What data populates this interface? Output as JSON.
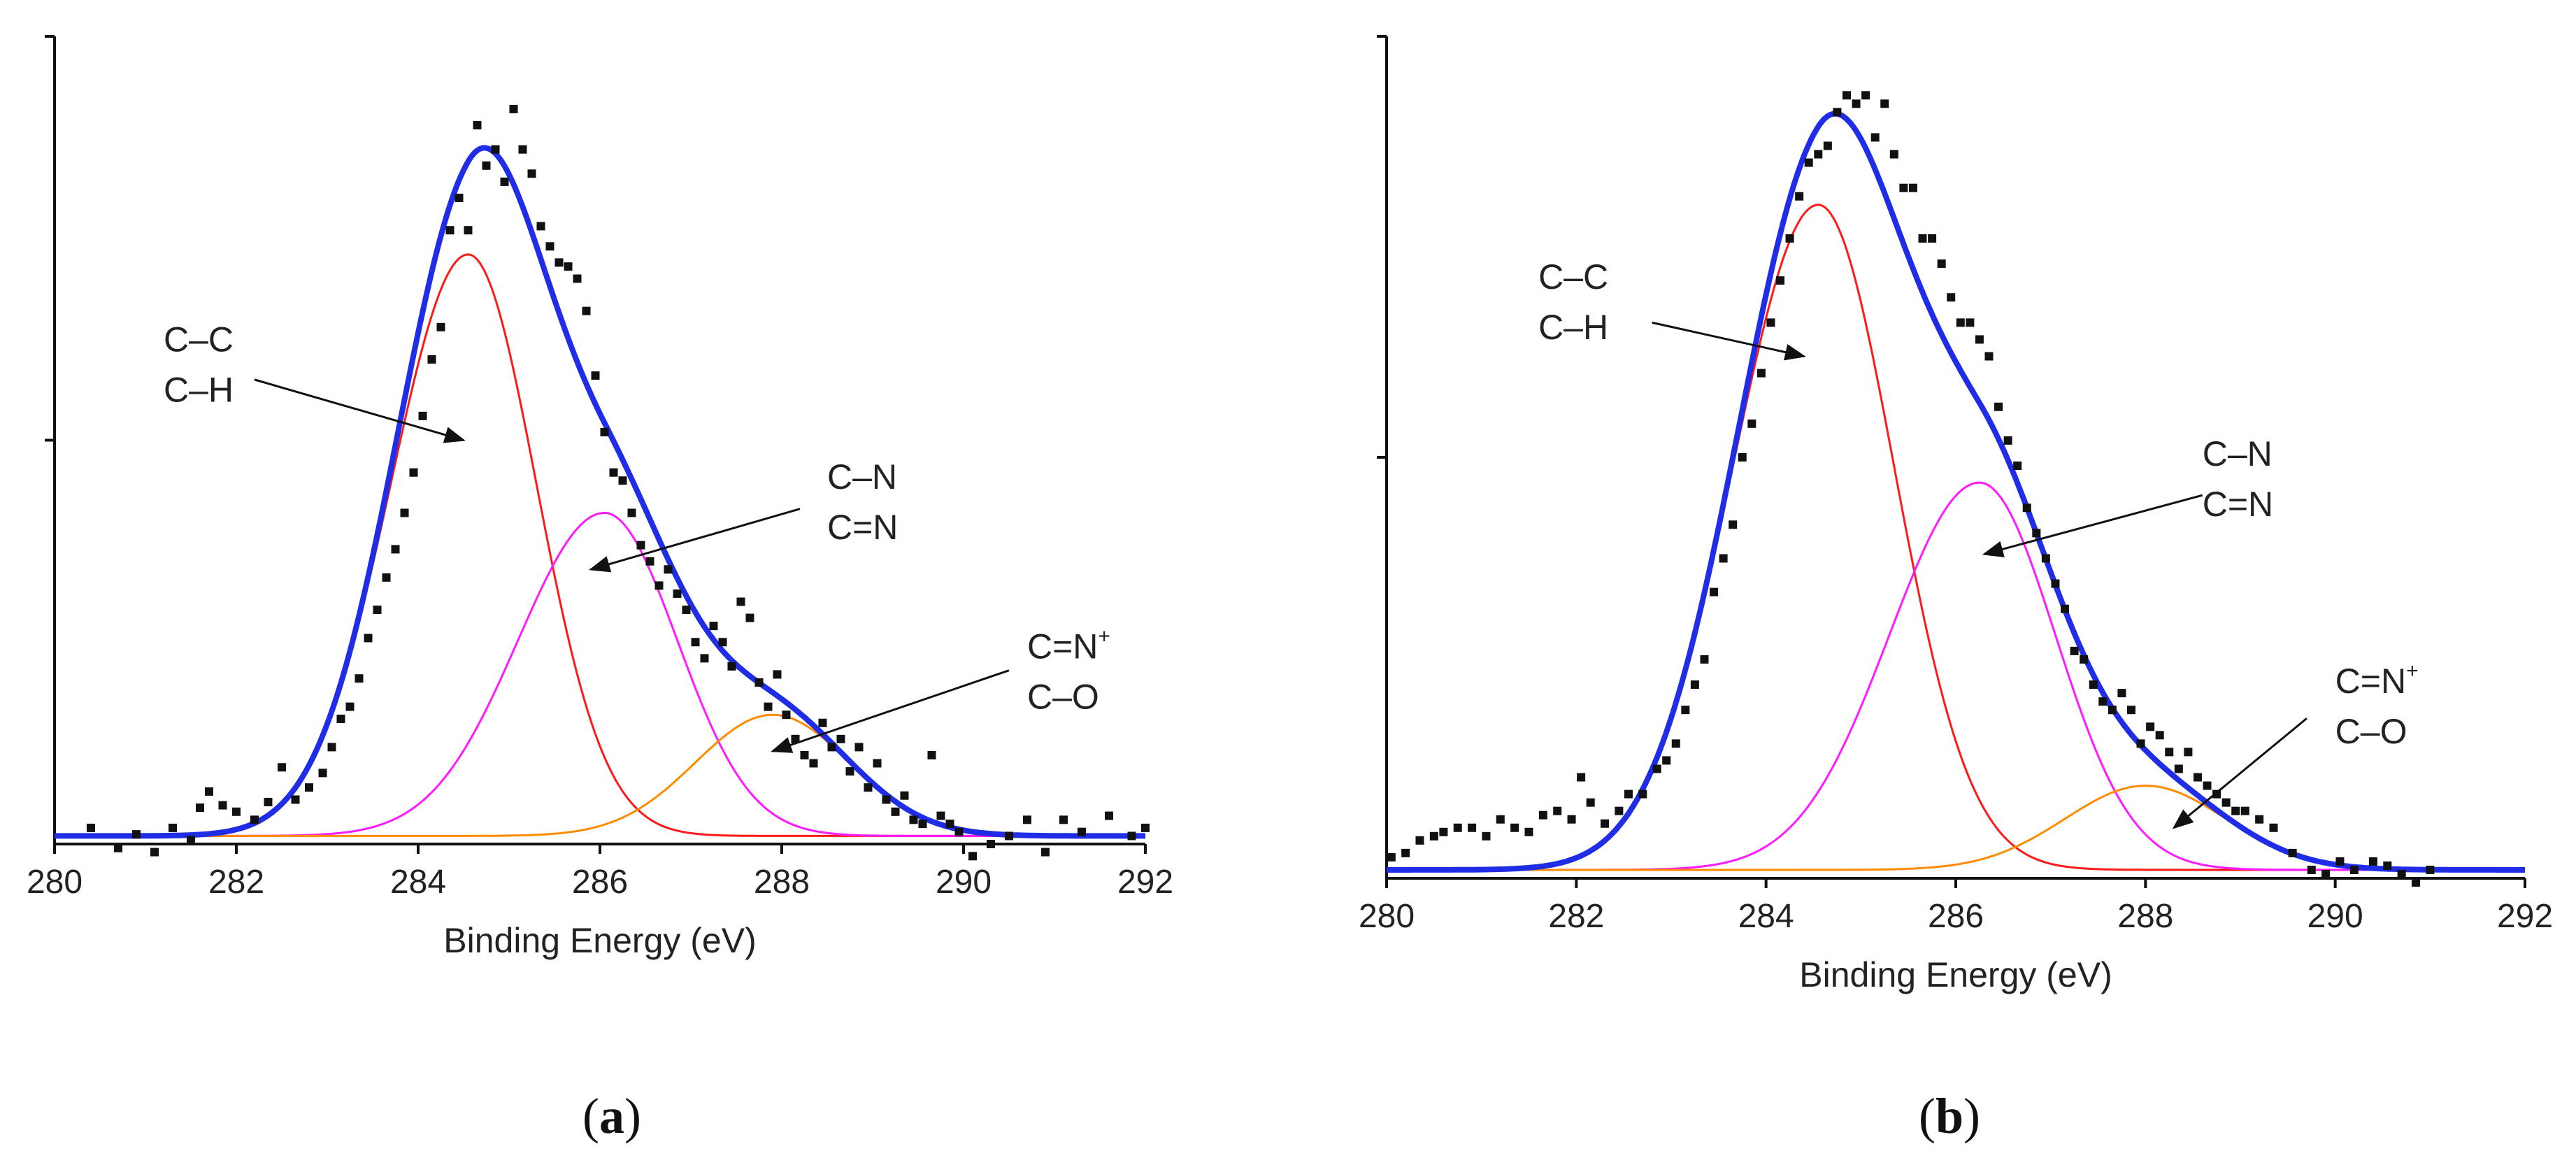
{
  "figure": {
    "panel_labels": [
      {
        "open": "(",
        "letter": "a",
        "close": ")"
      },
      {
        "open": "(",
        "letter": "b",
        "close": ")"
      }
    ]
  },
  "colors": {
    "envelope": "#1f2ee6",
    "cc_component": "#ff1a1a",
    "cn_component": "#ff1aff",
    "cno_component": "#ff8c00",
    "data_points": "#111111",
    "axis": "#111111"
  },
  "chart_data": [
    {
      "type": "scatter",
      "title": "",
      "xlabel": "Binding Energy (eV)",
      "ylabel": "",
      "xlim": [
        280,
        292
      ],
      "ylim": [
        0,
        1.0
      ],
      "x_ticks": [
        "280",
        "282",
        "284",
        "286",
        "288",
        "290",
        "292"
      ],
      "y_ticks": [
        0.5,
        1.0
      ],
      "baseline": 0.01,
      "components": [
        {
          "name": "C–C / C–H",
          "color_key": "cc_component",
          "center": 284.55,
          "amplitude": 0.72,
          "width_left": 0.85,
          "width_right": 0.75
        },
        {
          "name": "C–N / C=N",
          "color_key": "cn_component",
          "center": 286.05,
          "amplitude": 0.4,
          "width_left": 0.95,
          "width_right": 0.8
        },
        {
          "name": "C=N+ / C–O",
          "color_key": "cno_component",
          "center": 287.9,
          "amplitude": 0.15,
          "width_left": 0.85,
          "width_right": 0.85
        }
      ],
      "annotations": [
        {
          "lines": [
            "C–C",
            "C–H"
          ],
          "superscript": "",
          "text_x": 281.2,
          "text_y": 0.61,
          "arrow_from": [
            282.2,
            0.575
          ],
          "arrow_to": [
            284.5,
            0.5
          ]
        },
        {
          "lines": [
            "C–N",
            "C=N"
          ],
          "superscript": "",
          "text_x": 288.5,
          "text_y": 0.44,
          "arrow_from": [
            288.2,
            0.415
          ],
          "arrow_to": [
            285.9,
            0.34
          ]
        },
        {
          "lines": [
            "C=N",
            "C–O"
          ],
          "superscript": "+",
          "text_x": 290.7,
          "text_y": 0.23,
          "arrow_from": [
            290.5,
            0.215
          ],
          "arrow_to": [
            287.9,
            0.115
          ]
        }
      ],
      "points": [
        [
          280.4,
          0.02
        ],
        [
          280.7,
          -0.005
        ],
        [
          280.9,
          0.012
        ],
        [
          281.1,
          -0.01
        ],
        [
          281.3,
          0.02
        ],
        [
          281.5,
          0.005
        ],
        [
          281.6,
          0.045
        ],
        [
          281.7,
          0.065
        ],
        [
          281.85,
          0.048
        ],
        [
          282.0,
          0.04
        ],
        [
          282.2,
          0.03
        ],
        [
          282.35,
          0.052
        ],
        [
          282.5,
          0.095
        ],
        [
          282.65,
          0.055
        ],
        [
          282.8,
          0.07
        ],
        [
          282.95,
          0.088
        ],
        [
          283.05,
          0.12
        ],
        [
          283.15,
          0.155
        ],
        [
          283.25,
          0.17
        ],
        [
          283.35,
          0.205
        ],
        [
          283.45,
          0.255
        ],
        [
          283.55,
          0.29
        ],
        [
          283.65,
          0.33
        ],
        [
          283.75,
          0.365
        ],
        [
          283.85,
          0.41
        ],
        [
          283.95,
          0.46
        ],
        [
          284.05,
          0.53
        ],
        [
          284.15,
          0.6
        ],
        [
          284.25,
          0.64
        ],
        [
          284.35,
          0.76
        ],
        [
          284.45,
          0.8
        ],
        [
          284.55,
          0.76
        ],
        [
          284.65,
          0.89
        ],
        [
          284.75,
          0.84
        ],
        [
          284.85,
          0.86
        ],
        [
          284.95,
          0.82
        ],
        [
          285.05,
          0.91
        ],
        [
          285.15,
          0.86
        ],
        [
          285.25,
          0.83
        ],
        [
          285.35,
          0.765
        ],
        [
          285.45,
          0.74
        ],
        [
          285.55,
          0.72
        ],
        [
          285.65,
          0.715
        ],
        [
          285.75,
          0.7
        ],
        [
          285.85,
          0.66
        ],
        [
          285.95,
          0.58
        ],
        [
          286.05,
          0.51
        ],
        [
          286.15,
          0.46
        ],
        [
          286.25,
          0.45
        ],
        [
          286.35,
          0.41
        ],
        [
          286.45,
          0.37
        ],
        [
          286.55,
          0.35
        ],
        [
          286.65,
          0.32
        ],
        [
          286.75,
          0.34
        ],
        [
          286.85,
          0.31
        ],
        [
          286.95,
          0.29
        ],
        [
          287.05,
          0.25
        ],
        [
          287.15,
          0.23
        ],
        [
          287.25,
          0.27
        ],
        [
          287.35,
          0.25
        ],
        [
          287.45,
          0.22
        ],
        [
          287.55,
          0.3
        ],
        [
          287.65,
          0.28
        ],
        [
          287.75,
          0.2
        ],
        [
          287.85,
          0.17
        ],
        [
          287.95,
          0.21
        ],
        [
          288.05,
          0.16
        ],
        [
          288.15,
          0.13
        ],
        [
          288.25,
          0.11
        ],
        [
          288.35,
          0.1
        ],
        [
          288.45,
          0.15
        ],
        [
          288.55,
          0.12
        ],
        [
          288.65,
          0.13
        ],
        [
          288.75,
          0.09
        ],
        [
          288.85,
          0.12
        ],
        [
          288.95,
          0.07
        ],
        [
          289.05,
          0.1
        ],
        [
          289.15,
          0.055
        ],
        [
          289.25,
          0.04
        ],
        [
          289.35,
          0.06
        ],
        [
          289.45,
          0.03
        ],
        [
          289.55,
          0.025
        ],
        [
          289.65,
          0.11
        ],
        [
          289.75,
          0.035
        ],
        [
          289.85,
          0.025
        ],
        [
          289.95,
          0.015
        ],
        [
          290.1,
          -0.015
        ],
        [
          290.3,
          0.0
        ],
        [
          290.5,
          0.01
        ],
        [
          290.7,
          0.03
        ],
        [
          290.9,
          -0.01
        ],
        [
          291.1,
          0.03
        ],
        [
          291.3,
          0.015
        ],
        [
          291.6,
          0.035
        ],
        [
          291.85,
          0.01
        ],
        [
          292.0,
          0.02
        ]
      ]
    },
    {
      "type": "scatter",
      "title": "",
      "xlabel": "Binding Energy (eV)",
      "ylabel": "",
      "xlim": [
        280,
        292
      ],
      "ylim": [
        0,
        1.0
      ],
      "x_ticks": [
        "280",
        "282",
        "284",
        "286",
        "288",
        "290",
        "292"
      ],
      "y_ticks": [
        0.5,
        1.0
      ],
      "baseline": 0.01,
      "components": [
        {
          "name": "C–C / C–H",
          "color_key": "cc_component",
          "center": 284.55,
          "amplitude": 0.79,
          "width_left": 0.9,
          "width_right": 0.8
        },
        {
          "name": "C–N / C=N",
          "color_key": "cn_component",
          "center": 286.25,
          "amplitude": 0.46,
          "width_left": 0.95,
          "width_right": 0.8
        },
        {
          "name": "C=N+ / C–O",
          "color_key": "cno_component",
          "center": 288.0,
          "amplitude": 0.1,
          "width_left": 0.85,
          "width_right": 0.85
        }
      ],
      "annotations": [
        {
          "lines": [
            "C–C",
            "C–H"
          ],
          "superscript": "",
          "text_x": 281.6,
          "text_y": 0.7,
          "arrow_from": [
            282.8,
            0.66
          ],
          "arrow_to": [
            284.4,
            0.62
          ]
        },
        {
          "lines": [
            "C–N",
            "C=N"
          ],
          "superscript": "",
          "text_x": 288.6,
          "text_y": 0.49,
          "arrow_from": [
            288.6,
            0.455
          ],
          "arrow_to": [
            286.3,
            0.385
          ]
        },
        {
          "lines": [
            "C=N",
            "C–O"
          ],
          "superscript": "+",
          "text_x": 290.0,
          "text_y": 0.22,
          "arrow_from": [
            289.7,
            0.19
          ],
          "arrow_to": [
            288.3,
            0.06
          ]
        }
      ],
      "points": [
        [
          280.05,
          0.025
        ],
        [
          280.2,
          0.03
        ],
        [
          280.35,
          0.045
        ],
        [
          280.5,
          0.05
        ],
        [
          280.6,
          0.055
        ],
        [
          280.75,
          0.06
        ],
        [
          280.9,
          0.06
        ],
        [
          281.05,
          0.05
        ],
        [
          281.2,
          0.07
        ],
        [
          281.35,
          0.06
        ],
        [
          281.5,
          0.055
        ],
        [
          281.65,
          0.075
        ],
        [
          281.8,
          0.08
        ],
        [
          281.95,
          0.07
        ],
        [
          282.05,
          0.12
        ],
        [
          282.15,
          0.09
        ],
        [
          282.3,
          0.065
        ],
        [
          282.45,
          0.08
        ],
        [
          282.55,
          0.1
        ],
        [
          282.7,
          0.1
        ],
        [
          282.85,
          0.13
        ],
        [
          282.95,
          0.14
        ],
        [
          283.05,
          0.16
        ],
        [
          283.15,
          0.2
        ],
        [
          283.25,
          0.23
        ],
        [
          283.35,
          0.26
        ],
        [
          283.45,
          0.34
        ],
        [
          283.55,
          0.38
        ],
        [
          283.65,
          0.42
        ],
        [
          283.75,
          0.5
        ],
        [
          283.85,
          0.54
        ],
        [
          283.95,
          0.6
        ],
        [
          284.05,
          0.66
        ],
        [
          284.15,
          0.71
        ],
        [
          284.25,
          0.76
        ],
        [
          284.35,
          0.81
        ],
        [
          284.45,
          0.85
        ],
        [
          284.55,
          0.86
        ],
        [
          284.65,
          0.87
        ],
        [
          284.75,
          0.91
        ],
        [
          284.85,
          0.93
        ],
        [
          284.95,
          0.92
        ],
        [
          285.05,
          0.93
        ],
        [
          285.15,
          0.88
        ],
        [
          285.25,
          0.92
        ],
        [
          285.35,
          0.86
        ],
        [
          285.45,
          0.82
        ],
        [
          285.55,
          0.82
        ],
        [
          285.65,
          0.76
        ],
        [
          285.75,
          0.76
        ],
        [
          285.85,
          0.73
        ],
        [
          285.95,
          0.69
        ],
        [
          286.05,
          0.66
        ],
        [
          286.15,
          0.66
        ],
        [
          286.25,
          0.64
        ],
        [
          286.35,
          0.62
        ],
        [
          286.45,
          0.56
        ],
        [
          286.55,
          0.52
        ],
        [
          286.65,
          0.49
        ],
        [
          286.75,
          0.44
        ],
        [
          286.85,
          0.41
        ],
        [
          286.95,
          0.38
        ],
        [
          287.05,
          0.35
        ],
        [
          287.15,
          0.32
        ],
        [
          287.25,
          0.27
        ],
        [
          287.35,
          0.26
        ],
        [
          287.45,
          0.23
        ],
        [
          287.55,
          0.21
        ],
        [
          287.65,
          0.2
        ],
        [
          287.75,
          0.22
        ],
        [
          287.85,
          0.2
        ],
        [
          287.95,
          0.16
        ],
        [
          288.05,
          0.18
        ],
        [
          288.15,
          0.17
        ],
        [
          288.25,
          0.15
        ],
        [
          288.35,
          0.13
        ],
        [
          288.45,
          0.15
        ],
        [
          288.55,
          0.12
        ],
        [
          288.65,
          0.11
        ],
        [
          288.75,
          0.1
        ],
        [
          288.85,
          0.09
        ],
        [
          288.95,
          0.08
        ],
        [
          289.05,
          0.08
        ],
        [
          289.2,
          0.07
        ],
        [
          289.35,
          0.06
        ],
        [
          289.55,
          0.03
        ],
        [
          289.75,
          0.01
        ],
        [
          289.9,
          0.005
        ],
        [
          290.05,
          0.02
        ],
        [
          290.2,
          0.01
        ],
        [
          290.4,
          0.02
        ],
        [
          290.55,
          0.015
        ],
        [
          290.7,
          0.005
        ],
        [
          290.85,
          -0.005
        ],
        [
          291.0,
          0.01
        ]
      ]
    }
  ]
}
